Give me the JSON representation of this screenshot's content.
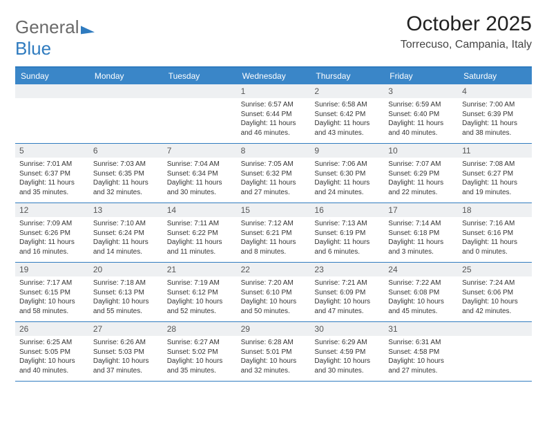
{
  "logo": {
    "part1": "General",
    "part2": "Blue"
  },
  "title": "October 2025",
  "location": "Torrecuso, Campania, Italy",
  "colors": {
    "accent": "#3a86c8",
    "border": "#2f7bbf",
    "dayHeaderBg": "#eef0f2"
  },
  "dow": [
    "Sunday",
    "Monday",
    "Tuesday",
    "Wednesday",
    "Thursday",
    "Friday",
    "Saturday"
  ],
  "weeks": [
    [
      {
        "n": "",
        "sr": "",
        "ss": "",
        "dl1": "",
        "dl2": ""
      },
      {
        "n": "",
        "sr": "",
        "ss": "",
        "dl1": "",
        "dl2": ""
      },
      {
        "n": "",
        "sr": "",
        "ss": "",
        "dl1": "",
        "dl2": ""
      },
      {
        "n": "1",
        "sr": "Sunrise: 6:57 AM",
        "ss": "Sunset: 6:44 PM",
        "dl1": "Daylight: 11 hours",
        "dl2": "and 46 minutes."
      },
      {
        "n": "2",
        "sr": "Sunrise: 6:58 AM",
        "ss": "Sunset: 6:42 PM",
        "dl1": "Daylight: 11 hours",
        "dl2": "and 43 minutes."
      },
      {
        "n": "3",
        "sr": "Sunrise: 6:59 AM",
        "ss": "Sunset: 6:40 PM",
        "dl1": "Daylight: 11 hours",
        "dl2": "and 40 minutes."
      },
      {
        "n": "4",
        "sr": "Sunrise: 7:00 AM",
        "ss": "Sunset: 6:39 PM",
        "dl1": "Daylight: 11 hours",
        "dl2": "and 38 minutes."
      }
    ],
    [
      {
        "n": "5",
        "sr": "Sunrise: 7:01 AM",
        "ss": "Sunset: 6:37 PM",
        "dl1": "Daylight: 11 hours",
        "dl2": "and 35 minutes."
      },
      {
        "n": "6",
        "sr": "Sunrise: 7:03 AM",
        "ss": "Sunset: 6:35 PM",
        "dl1": "Daylight: 11 hours",
        "dl2": "and 32 minutes."
      },
      {
        "n": "7",
        "sr": "Sunrise: 7:04 AM",
        "ss": "Sunset: 6:34 PM",
        "dl1": "Daylight: 11 hours",
        "dl2": "and 30 minutes."
      },
      {
        "n": "8",
        "sr": "Sunrise: 7:05 AM",
        "ss": "Sunset: 6:32 PM",
        "dl1": "Daylight: 11 hours",
        "dl2": "and 27 minutes."
      },
      {
        "n": "9",
        "sr": "Sunrise: 7:06 AM",
        "ss": "Sunset: 6:30 PM",
        "dl1": "Daylight: 11 hours",
        "dl2": "and 24 minutes."
      },
      {
        "n": "10",
        "sr": "Sunrise: 7:07 AM",
        "ss": "Sunset: 6:29 PM",
        "dl1": "Daylight: 11 hours",
        "dl2": "and 22 minutes."
      },
      {
        "n": "11",
        "sr": "Sunrise: 7:08 AM",
        "ss": "Sunset: 6:27 PM",
        "dl1": "Daylight: 11 hours",
        "dl2": "and 19 minutes."
      }
    ],
    [
      {
        "n": "12",
        "sr": "Sunrise: 7:09 AM",
        "ss": "Sunset: 6:26 PM",
        "dl1": "Daylight: 11 hours",
        "dl2": "and 16 minutes."
      },
      {
        "n": "13",
        "sr": "Sunrise: 7:10 AM",
        "ss": "Sunset: 6:24 PM",
        "dl1": "Daylight: 11 hours",
        "dl2": "and 14 minutes."
      },
      {
        "n": "14",
        "sr": "Sunrise: 7:11 AM",
        "ss": "Sunset: 6:22 PM",
        "dl1": "Daylight: 11 hours",
        "dl2": "and 11 minutes."
      },
      {
        "n": "15",
        "sr": "Sunrise: 7:12 AM",
        "ss": "Sunset: 6:21 PM",
        "dl1": "Daylight: 11 hours",
        "dl2": "and 8 minutes."
      },
      {
        "n": "16",
        "sr": "Sunrise: 7:13 AM",
        "ss": "Sunset: 6:19 PM",
        "dl1": "Daylight: 11 hours",
        "dl2": "and 6 minutes."
      },
      {
        "n": "17",
        "sr": "Sunrise: 7:14 AM",
        "ss": "Sunset: 6:18 PM",
        "dl1": "Daylight: 11 hours",
        "dl2": "and 3 minutes."
      },
      {
        "n": "18",
        "sr": "Sunrise: 7:16 AM",
        "ss": "Sunset: 6:16 PM",
        "dl1": "Daylight: 11 hours",
        "dl2": "and 0 minutes."
      }
    ],
    [
      {
        "n": "19",
        "sr": "Sunrise: 7:17 AM",
        "ss": "Sunset: 6:15 PM",
        "dl1": "Daylight: 10 hours",
        "dl2": "and 58 minutes."
      },
      {
        "n": "20",
        "sr": "Sunrise: 7:18 AM",
        "ss": "Sunset: 6:13 PM",
        "dl1": "Daylight: 10 hours",
        "dl2": "and 55 minutes."
      },
      {
        "n": "21",
        "sr": "Sunrise: 7:19 AM",
        "ss": "Sunset: 6:12 PM",
        "dl1": "Daylight: 10 hours",
        "dl2": "and 52 minutes."
      },
      {
        "n": "22",
        "sr": "Sunrise: 7:20 AM",
        "ss": "Sunset: 6:10 PM",
        "dl1": "Daylight: 10 hours",
        "dl2": "and 50 minutes."
      },
      {
        "n": "23",
        "sr": "Sunrise: 7:21 AM",
        "ss": "Sunset: 6:09 PM",
        "dl1": "Daylight: 10 hours",
        "dl2": "and 47 minutes."
      },
      {
        "n": "24",
        "sr": "Sunrise: 7:22 AM",
        "ss": "Sunset: 6:08 PM",
        "dl1": "Daylight: 10 hours",
        "dl2": "and 45 minutes."
      },
      {
        "n": "25",
        "sr": "Sunrise: 7:24 AM",
        "ss": "Sunset: 6:06 PM",
        "dl1": "Daylight: 10 hours",
        "dl2": "and 42 minutes."
      }
    ],
    [
      {
        "n": "26",
        "sr": "Sunrise: 6:25 AM",
        "ss": "Sunset: 5:05 PM",
        "dl1": "Daylight: 10 hours",
        "dl2": "and 40 minutes."
      },
      {
        "n": "27",
        "sr": "Sunrise: 6:26 AM",
        "ss": "Sunset: 5:03 PM",
        "dl1": "Daylight: 10 hours",
        "dl2": "and 37 minutes."
      },
      {
        "n": "28",
        "sr": "Sunrise: 6:27 AM",
        "ss": "Sunset: 5:02 PM",
        "dl1": "Daylight: 10 hours",
        "dl2": "and 35 minutes."
      },
      {
        "n": "29",
        "sr": "Sunrise: 6:28 AM",
        "ss": "Sunset: 5:01 PM",
        "dl1": "Daylight: 10 hours",
        "dl2": "and 32 minutes."
      },
      {
        "n": "30",
        "sr": "Sunrise: 6:29 AM",
        "ss": "Sunset: 4:59 PM",
        "dl1": "Daylight: 10 hours",
        "dl2": "and 30 minutes."
      },
      {
        "n": "31",
        "sr": "Sunrise: 6:31 AM",
        "ss": "Sunset: 4:58 PM",
        "dl1": "Daylight: 10 hours",
        "dl2": "and 27 minutes."
      },
      {
        "n": "",
        "sr": "",
        "ss": "",
        "dl1": "",
        "dl2": ""
      }
    ]
  ]
}
